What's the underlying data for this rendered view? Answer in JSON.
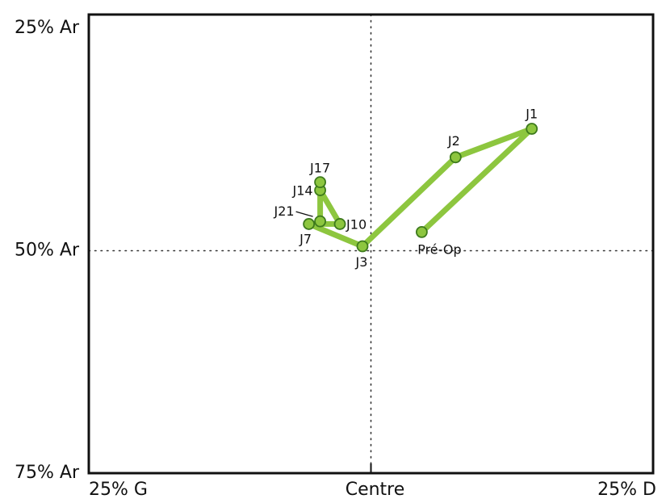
{
  "chart_data": {
    "type": "scatter",
    "title": "",
    "xlabel": "",
    "ylabel": "",
    "x_ticks": [
      {
        "value": -1,
        "label": "25% G"
      },
      {
        "value": 0,
        "label": "Centre"
      },
      {
        "value": 1,
        "label": "25% D"
      }
    ],
    "y_ticks": [
      {
        "value": 25,
        "label": "25% Ar"
      },
      {
        "value": 50,
        "label": "50% Ar"
      },
      {
        "value": 75,
        "label": "75% Ar"
      }
    ],
    "xlim": [
      -1,
      1
    ],
    "ylim": [
      25,
      75
    ],
    "y_inverted": true,
    "grid": "dotted reference lines at Centre and 50% Ar",
    "line_color": "#8dc63f",
    "marker_fill": "#8dc63f",
    "marker_edge": "#3d7a1c",
    "points": [
      {
        "label": "Pré-Op",
        "x": 0.18,
        "y": 47.9
      },
      {
        "label": "J1",
        "x": 0.57,
        "y": 36.3
      },
      {
        "label": "J2",
        "x": 0.3,
        "y": 39.5
      },
      {
        "label": "J3",
        "x": -0.03,
        "y": 49.5
      },
      {
        "label": "J7",
        "x": -0.22,
        "y": 47.0
      },
      {
        "label": "J10",
        "x": -0.11,
        "y": 47.0
      },
      {
        "label": "J14",
        "x": -0.18,
        "y": 43.2
      },
      {
        "label": "J17",
        "x": -0.18,
        "y": 42.3
      },
      {
        "label": "J21",
        "x": -0.18,
        "y": 46.7
      }
    ]
  }
}
